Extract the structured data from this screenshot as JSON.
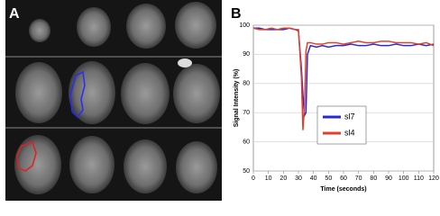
{
  "panel_labels": [
    "A",
    "B"
  ],
  "chart_data": {
    "type": "line",
    "x_label": "Time (seconds)",
    "y_label": "Signal Intensity (%)",
    "x": [
      0,
      4,
      8,
      12,
      16,
      20,
      24,
      28,
      30,
      32,
      33,
      34,
      35,
      36,
      38,
      42,
      46,
      50,
      55,
      60,
      65,
      70,
      75,
      80,
      85,
      90,
      95,
      100,
      105,
      110,
      115,
      120
    ],
    "series": [
      {
        "name": "sl7",
        "color": "#2a2ad0",
        "values": [
          99,
          99,
          98.5,
          98.5,
          98.5,
          98.5,
          99,
          98.5,
          98,
          85,
          76,
          69,
          70,
          90,
          93,
          92.5,
          93,
          92.5,
          93,
          93,
          93.5,
          93,
          93,
          93.5,
          93,
          93,
          93.5,
          93,
          93,
          93.5,
          93,
          93.5
        ]
      },
      {
        "name": "sl4",
        "color": "#e0402a",
        "values": [
          99,
          98.5,
          98.5,
          99,
          98.5,
          99,
          99,
          98.5,
          98.5,
          82,
          64,
          72,
          91,
          94,
          94,
          93.5,
          93.5,
          94,
          94,
          93.5,
          94,
          94.5,
          94,
          94,
          94.5,
          94.5,
          94,
          94,
          94,
          93.5,
          94,
          93
        ]
      }
    ],
    "xlim": [
      0,
      120
    ],
    "xticks": [
      0,
      10,
      20,
      30,
      40,
      50,
      60,
      70,
      80,
      90,
      100,
      110,
      120
    ],
    "ylim": [
      50,
      100
    ],
    "yticks": [
      50,
      60,
      70,
      80,
      90,
      100
    ],
    "grid": true
  }
}
